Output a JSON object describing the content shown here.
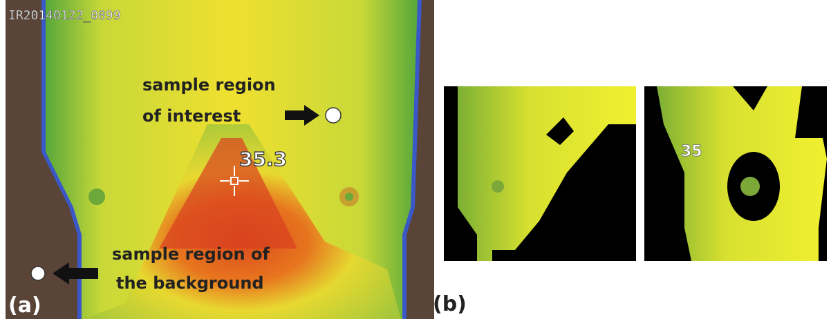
{
  "panel_a": {
    "filename": "IR20140122_0899",
    "roi_label": [
      "sample region",
      "of interest"
    ],
    "temperature": "35.3",
    "background_label": [
      "sample region of",
      "the  background"
    ],
    "caption": "(a)"
  },
  "panel_b": {
    "overlay_text": "35",
    "caption": "(b)"
  }
}
